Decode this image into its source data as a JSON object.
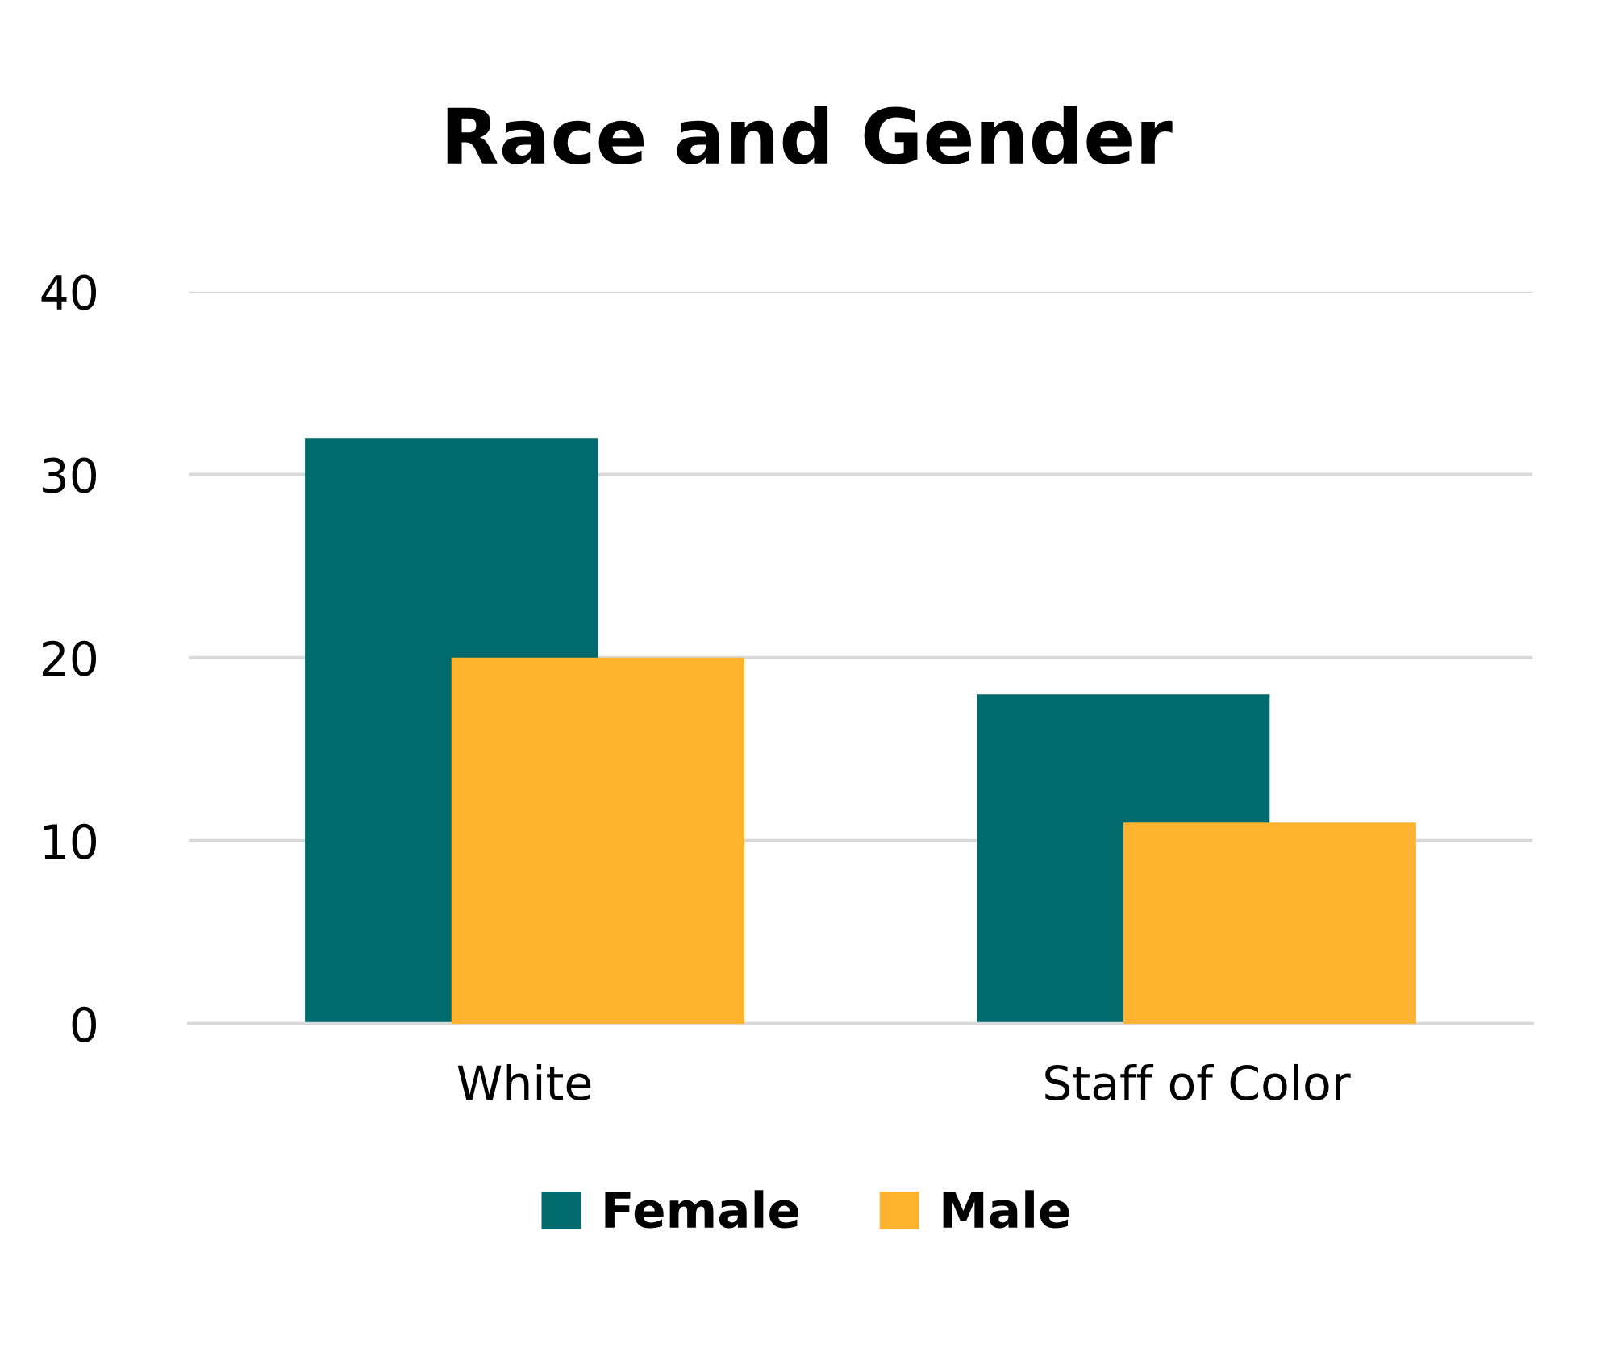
{
  "chart_data": {
    "type": "bar",
    "title": "Race and Gender",
    "categories": [
      "White",
      "Staff of Color"
    ],
    "series": [
      {
        "name": "Female",
        "color": "#016a6d",
        "values": [
          32,
          18
        ]
      },
      {
        "name": "Male",
        "color": "#fdb32d",
        "values": [
          20,
          11
        ]
      }
    ],
    "ylim": [
      0,
      40
    ],
    "yticks": [
      0,
      10,
      20,
      30,
      40
    ],
    "grid": "y",
    "legend": "bottom"
  }
}
